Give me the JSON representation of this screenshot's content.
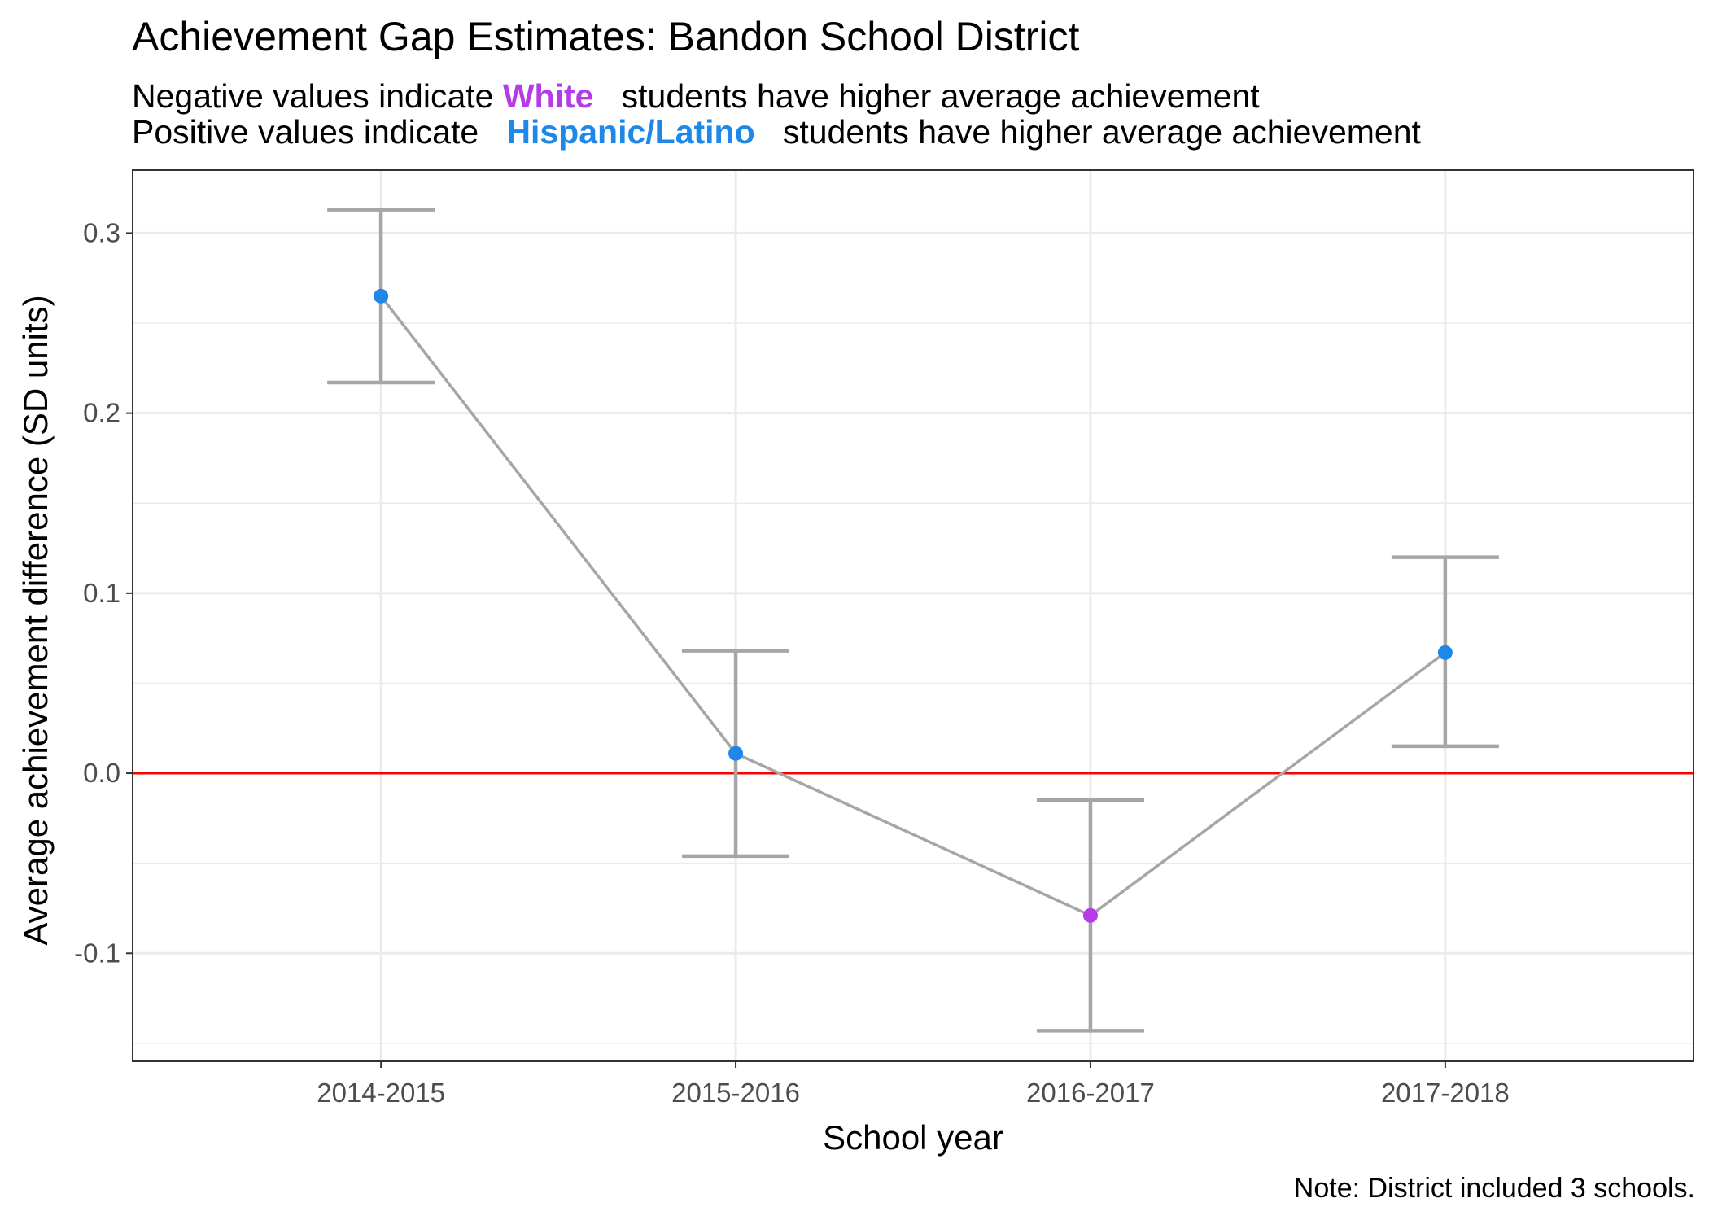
{
  "title": "Achievement Gap Estimates: Bandon School District",
  "subtitle": {
    "line1_prefix": "Negative values indicate",
    "line1_group": "White",
    "line1_suffix": "students have higher average achievement",
    "line2_prefix": "Positive values indicate",
    "line2_group": "Hispanic/Latino",
    "line2_suffix": "students have higher average achievement"
  },
  "note": "Note: District included 3 schools.",
  "colors": {
    "white_group": "#b53be8",
    "hispanic_group": "#1e88e8",
    "reference_line": "#ff0000",
    "line_and_errorbars": "#a6a6a6"
  },
  "chart_data": {
    "type": "line",
    "xlabel": "School year",
    "ylabel": "Average achievement difference (SD units)",
    "categories": [
      "2014-2015",
      "2015-2016",
      "2016-2017",
      "2017-2018"
    ],
    "values": [
      0.265,
      0.011,
      -0.079,
      0.067
    ],
    "error_lower": [
      0.217,
      -0.046,
      -0.143,
      0.015
    ],
    "error_upper": [
      0.313,
      0.068,
      -0.015,
      0.12
    ],
    "point_groups": [
      "Hispanic/Latino",
      "Hispanic/Latino",
      "White",
      "Hispanic/Latino"
    ],
    "reference_line_y": 0,
    "ylim": [
      -0.16,
      0.335
    ],
    "yticks": [
      -0.1,
      0.0,
      0.1,
      0.2,
      0.3
    ],
    "ytick_labels": [
      "-0.1",
      "0.0",
      "0.1",
      "0.2",
      "0.3"
    ],
    "grid": true,
    "legend": "none"
  }
}
